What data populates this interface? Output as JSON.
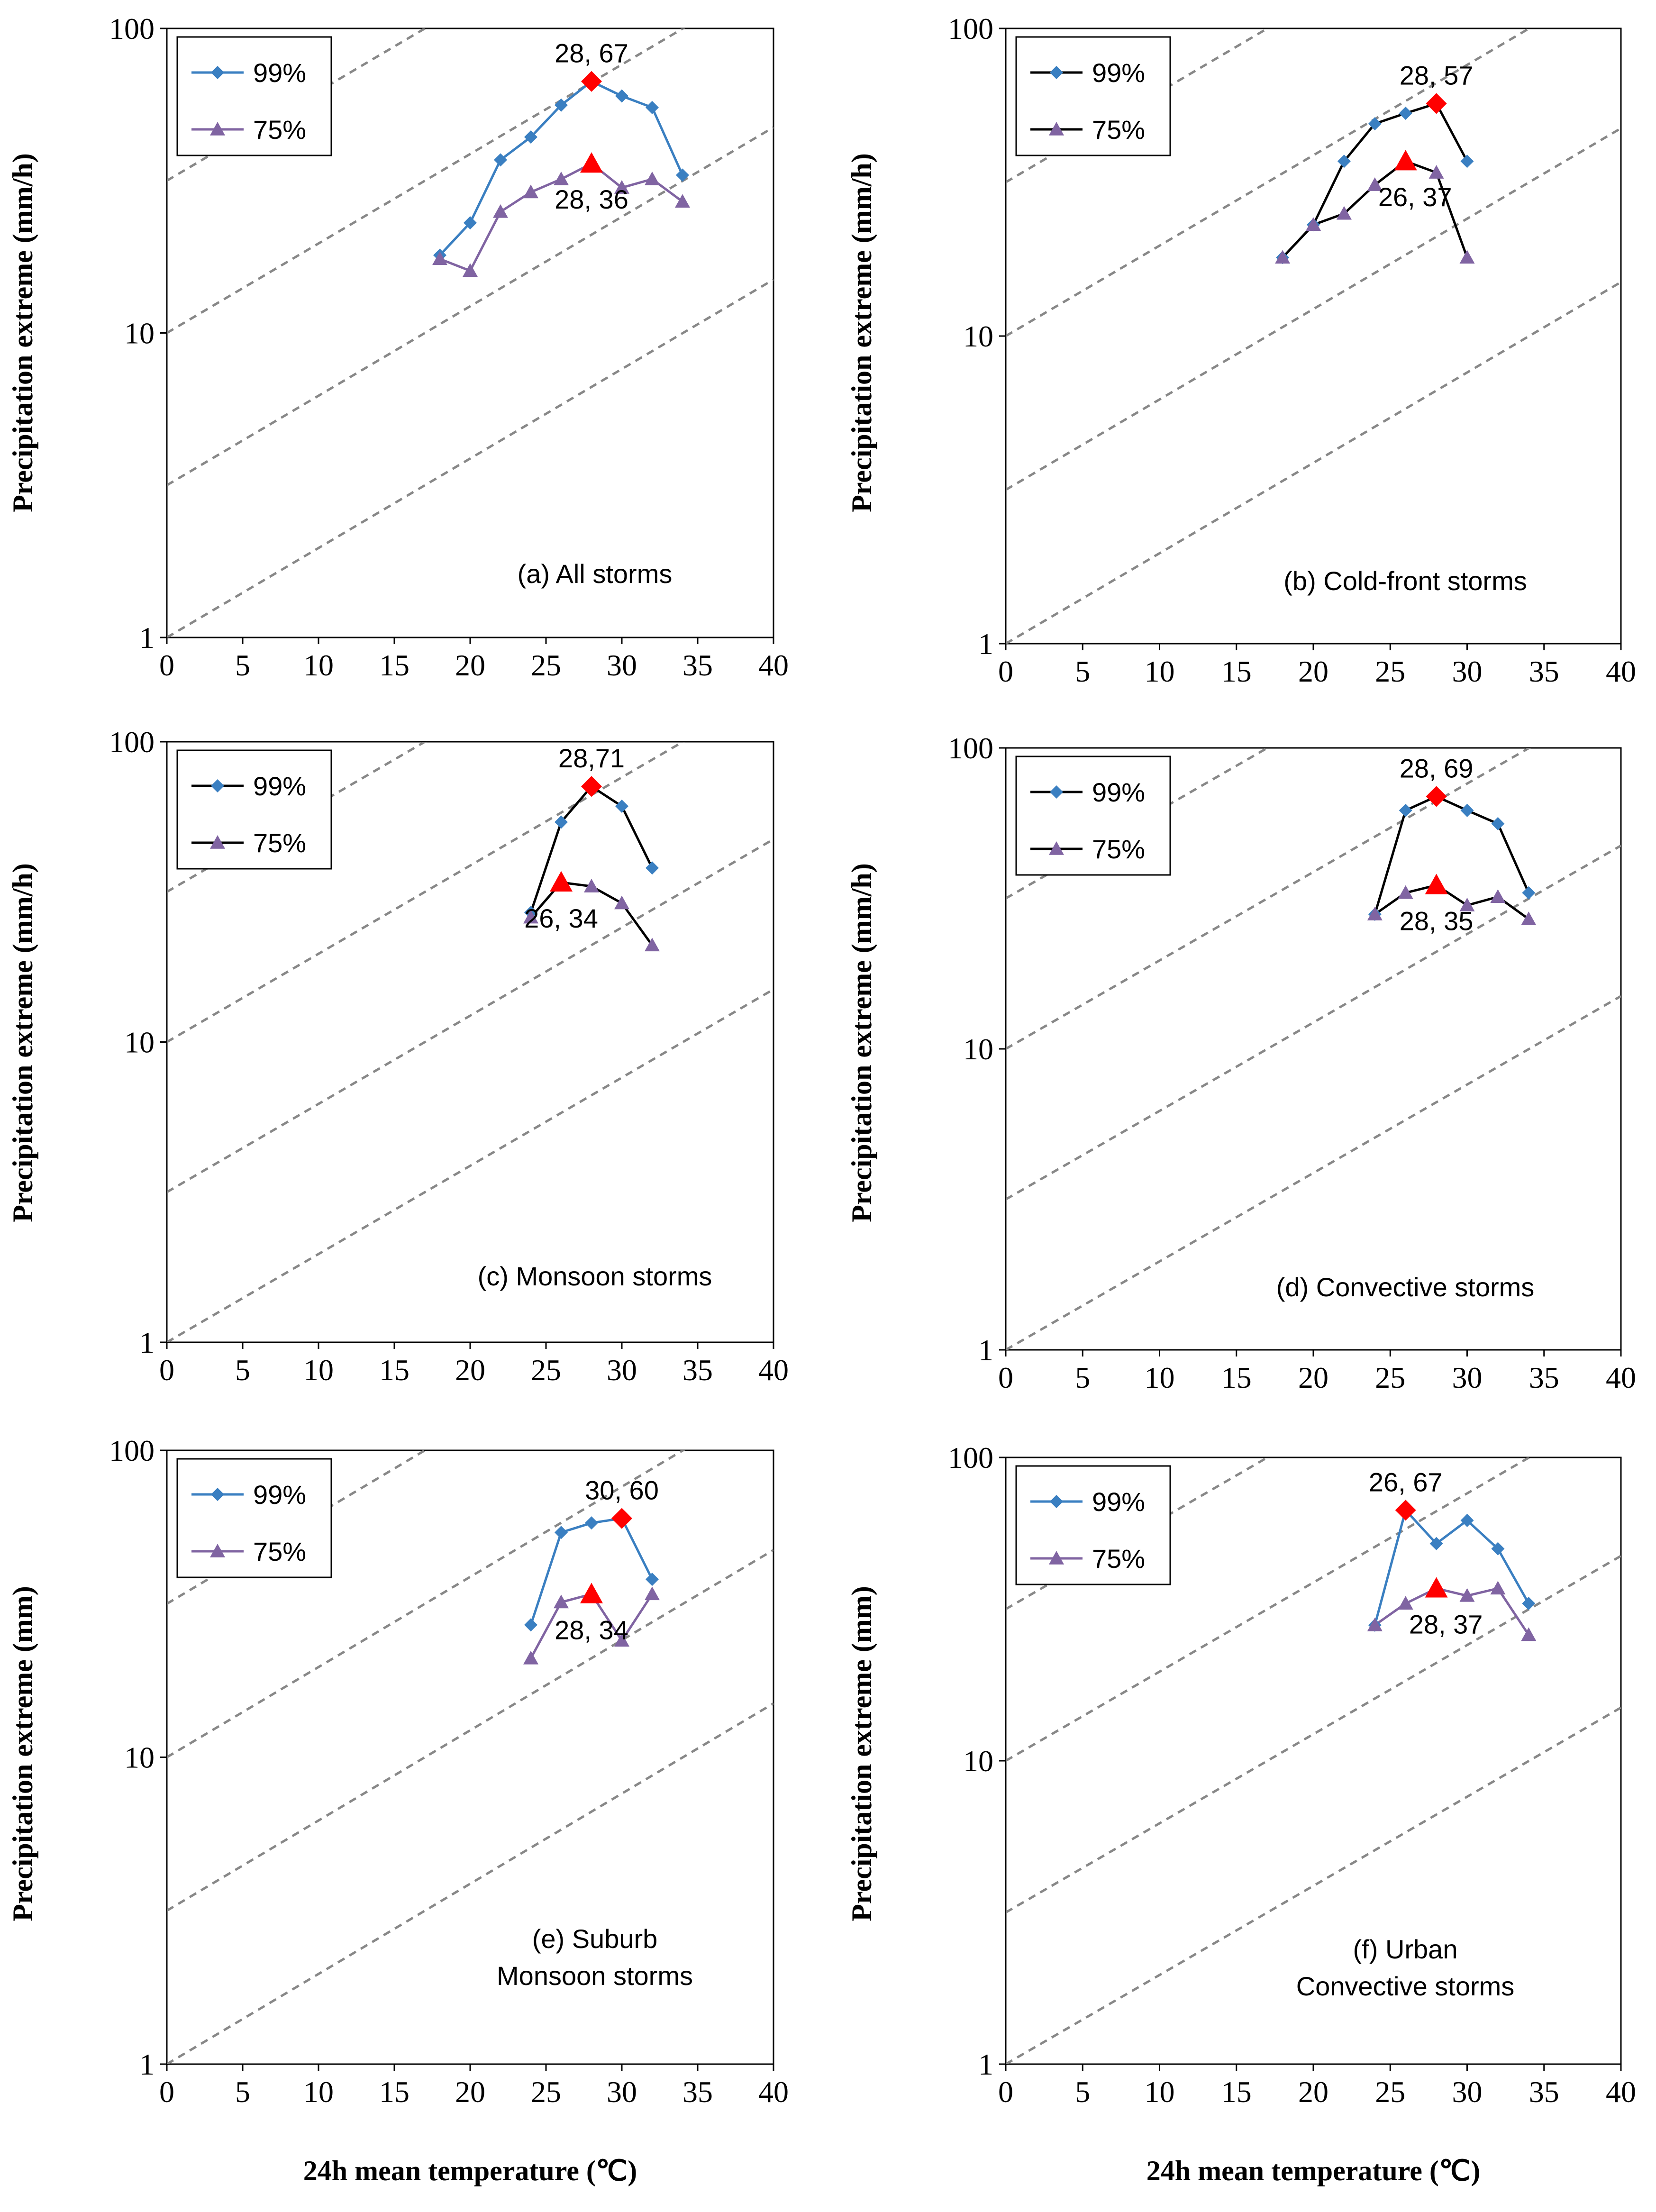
{
  "figure": {
    "xlabel": "24h mean temperature (℃)",
    "legend": [
      "99%",
      "75%"
    ],
    "colors": {
      "series99": "#3a7fc1",
      "series75": "#8064a2",
      "highlight": "#ff0000",
      "guide": "#888888",
      "axis": "#000000",
      "line_black": "#000000"
    }
  },
  "chart_data": [
    {
      "id": "a",
      "type": "line",
      "title": "(a) All storms",
      "ylabel": "Precipitation extreme (mm/h)",
      "xlabel": "",
      "xlim": [
        0,
        40
      ],
      "ylim": [
        1,
        100
      ],
      "yscale": "log",
      "xticks": [
        0,
        5,
        10,
        15,
        20,
        25,
        30,
        35,
        40
      ],
      "yticks": [
        1,
        10,
        100
      ],
      "line_style": "colored",
      "series": [
        {
          "name": "99%",
          "marker": "diamond",
          "x": [
            18,
            20,
            22,
            24,
            26,
            28,
            30,
            32,
            34
          ],
          "y": [
            18,
            23,
            37,
            44,
            56,
            67,
            60,
            55,
            33
          ]
        },
        {
          "name": "75%",
          "marker": "triangle",
          "x": [
            18,
            20,
            22,
            24,
            26,
            28,
            30,
            32,
            34
          ],
          "y": [
            17.5,
            16,
            25,
            29,
            32,
            36,
            30,
            32,
            27
          ]
        }
      ],
      "annotations": [
        {
          "series": "99%",
          "x": 28,
          "y": 67,
          "text": "28, 67",
          "pos": "above"
        },
        {
          "series": "75%",
          "x": 28,
          "y": 36,
          "text": "28, 36",
          "pos": "below"
        }
      ]
    },
    {
      "id": "b",
      "type": "line",
      "title": "(b) Cold-front storms",
      "ylabel": "Precipitation extreme (mm/h)",
      "xlabel": "",
      "xlim": [
        0,
        40
      ],
      "ylim": [
        1,
        100
      ],
      "yscale": "log",
      "xticks": [
        0,
        5,
        10,
        15,
        20,
        25,
        30,
        35,
        40
      ],
      "yticks": [
        1,
        10,
        100
      ],
      "line_style": "black",
      "series": [
        {
          "name": "99%",
          "marker": "diamond",
          "x": [
            18,
            20,
            22,
            24,
            26,
            28,
            30
          ],
          "y": [
            18,
            23,
            37,
            49,
            53,
            57,
            37
          ]
        },
        {
          "name": "75%",
          "marker": "triangle",
          "x": [
            18,
            20,
            22,
            24,
            26,
            28,
            30
          ],
          "y": [
            18,
            23,
            25,
            31,
            37,
            34,
            18
          ]
        }
      ],
      "annotations": [
        {
          "series": "99%",
          "x": 28,
          "y": 57,
          "text": "28, 57",
          "pos": "above"
        },
        {
          "series": "75%",
          "x": 26,
          "y": 37,
          "text": "26, 37",
          "pos": "below-right"
        }
      ]
    },
    {
      "id": "c",
      "type": "line",
      "title": "(c) Monsoon storms",
      "ylabel": "Precipitation extreme (mm/h)",
      "xlabel": "",
      "xlim": [
        0,
        40
      ],
      "ylim": [
        1,
        100
      ],
      "yscale": "log",
      "xticks": [
        0,
        5,
        10,
        15,
        20,
        25,
        30,
        35,
        40
      ],
      "yticks": [
        1,
        10,
        100
      ],
      "line_style": "black",
      "series": [
        {
          "name": "99%",
          "marker": "diamond",
          "x": [
            24,
            26,
            28,
            30,
            32
          ],
          "y": [
            27,
            54,
            71,
            61,
            38
          ]
        },
        {
          "name": "75%",
          "marker": "triangle",
          "x": [
            24,
            26,
            28,
            30,
            32
          ],
          "y": [
            26,
            34,
            33,
            29,
            21
          ]
        }
      ],
      "annotations": [
        {
          "series": "99%",
          "x": 28,
          "y": 71,
          "text": "28,71",
          "pos": "above"
        },
        {
          "series": "75%",
          "x": 26,
          "y": 34,
          "text": "26, 34",
          "pos": "below"
        }
      ]
    },
    {
      "id": "d",
      "type": "line",
      "title": "(d) Convective storms",
      "ylabel": "Precipitation extreme (mm/h)",
      "xlabel": "",
      "xlim": [
        0,
        40
      ],
      "ylim": [
        1,
        100
      ],
      "yscale": "log",
      "xticks": [
        0,
        5,
        10,
        15,
        20,
        25,
        30,
        35,
        40
      ],
      "yticks": [
        1,
        10,
        100
      ],
      "line_style": "black",
      "series": [
        {
          "name": "99%",
          "marker": "diamond",
          "x": [
            24,
            26,
            28,
            30,
            32,
            34
          ],
          "y": [
            28,
            62,
            69,
            62,
            56,
            33
          ]
        },
        {
          "name": "75%",
          "marker": "triangle",
          "x": [
            24,
            26,
            28,
            30,
            32,
            34
          ],
          "y": [
            28,
            33,
            35,
            30,
            32,
            27
          ]
        }
      ],
      "annotations": [
        {
          "series": "99%",
          "x": 28,
          "y": 69,
          "text": "28, 69",
          "pos": "above"
        },
        {
          "series": "75%",
          "x": 28,
          "y": 35,
          "text": "28, 35",
          "pos": "below"
        }
      ]
    },
    {
      "id": "e",
      "type": "line",
      "title": "(e) Suburb\nMonsoon storms",
      "ylabel": "Precipitation extreme (mm)",
      "xlabel": "24h mean temperature (℃)",
      "xlim": [
        0,
        40
      ],
      "ylim": [
        1,
        100
      ],
      "yscale": "log",
      "xticks": [
        0,
        5,
        10,
        15,
        20,
        25,
        30,
        35,
        40
      ],
      "yticks": [
        1,
        10,
        100
      ],
      "line_style": "colored",
      "series": [
        {
          "name": "99%",
          "marker": "diamond",
          "x": [
            24,
            26,
            28,
            30,
            32
          ],
          "y": [
            27,
            54,
            58,
            60,
            38
          ]
        },
        {
          "name": "75%",
          "marker": "triangle",
          "x": [
            24,
            26,
            28,
            30,
            32
          ],
          "y": [
            21,
            32,
            34,
            24,
            34
          ]
        }
      ],
      "annotations": [
        {
          "series": "99%",
          "x": 30,
          "y": 60,
          "text": "30, 60",
          "pos": "above"
        },
        {
          "series": "75%",
          "x": 28,
          "y": 34,
          "text": "28, 34",
          "pos": "below"
        }
      ]
    },
    {
      "id": "f",
      "type": "line",
      "title": "(f) Urban\nConvective storms",
      "ylabel": "Precipitation extreme (mm)",
      "xlabel": "24h mean temperature (℃)",
      "xlim": [
        0,
        40
      ],
      "ylim": [
        1,
        100
      ],
      "yscale": "log",
      "xticks": [
        0,
        5,
        10,
        15,
        20,
        25,
        30,
        35,
        40
      ],
      "yticks": [
        1,
        10,
        100
      ],
      "line_style": "colored",
      "series": [
        {
          "name": "99%",
          "marker": "diamond",
          "x": [
            24,
            26,
            28,
            30,
            32,
            34
          ],
          "y": [
            28,
            67,
            52,
            62,
            50,
            33
          ]
        },
        {
          "name": "75%",
          "marker": "triangle",
          "x": [
            24,
            26,
            28,
            30,
            32,
            34
          ],
          "y": [
            28,
            33,
            37,
            35,
            37,
            26
          ]
        }
      ],
      "annotations": [
        {
          "series": "99%",
          "x": 26,
          "y": 67,
          "text": "26, 67",
          "pos": "above"
        },
        {
          "series": "75%",
          "x": 28,
          "y": 37,
          "text": "28, 37",
          "pos": "below-right"
        }
      ]
    }
  ]
}
